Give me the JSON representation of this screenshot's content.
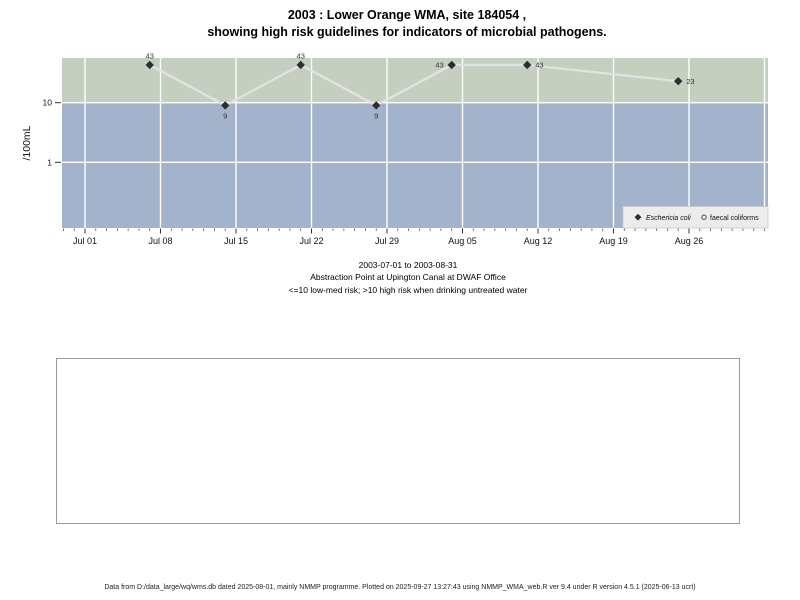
{
  "title": {
    "line1": "2003 : Lower Orange WMA, site 184054 ,",
    "line2": "showing high risk guidelines for indicators of microbial pathogens."
  },
  "chart_data": {
    "type": "line",
    "title": "2003 : Lower Orange WMA, site 184054 , showing high risk guidelines for indicators of microbial pathogens.",
    "ylabel": "/100mL",
    "xlabel": "",
    "y_scale": "log10",
    "y_tick_labels": [
      "10",
      "1"
    ],
    "y_tick_values": [
      10,
      1
    ],
    "x_tick_labels": [
      "Jul 01",
      "Jul 08",
      "Jul 15",
      "Jul 22",
      "Jul 29",
      "Aug 05",
      "Aug 12",
      "Aug 19",
      "Aug 26"
    ],
    "x_minor_tick_interval": "1 day",
    "x_range": [
      "2003-07-01",
      "2003-08-31"
    ],
    "grid": true,
    "legend_position": "bottom-right",
    "series": [
      {
        "name": "Eschericia coli",
        "marker": "filled-diamond",
        "line_color": "#e2e2e2",
        "marker_color": "#2e2e2e",
        "points": [
          {
            "day_from_jul01": 6,
            "value": 43,
            "label": "43",
            "label_side": "above"
          },
          {
            "day_from_jul01": 13,
            "value": 9,
            "label": "9",
            "label_side": "below"
          },
          {
            "day_from_jul01": 20,
            "value": 43,
            "label": "43",
            "label_side": "above"
          },
          {
            "day_from_jul01": 27,
            "value": 9,
            "label": "9",
            "label_side": "below"
          },
          {
            "day_from_jul01": 34,
            "value": 43,
            "label": "43",
            "label_side": "left"
          },
          {
            "day_from_jul01": 41,
            "value": 43,
            "label": "43",
            "label_side": "right"
          },
          {
            "day_from_jul01": 55,
            "value": 23,
            "label": "23",
            "label_side": "right"
          }
        ]
      },
      {
        "name": "faecal coliforms",
        "marker": "open-circle",
        "points": []
      }
    ],
    "bands": [
      {
        "name": "high-risk",
        "rule": ">10 high risk",
        "color": "#c5cfbf"
      },
      {
        "name": "low-med-risk",
        "rule": "<=10 low-med risk",
        "color": "#a3b3cb"
      }
    ],
    "legend": [
      {
        "label": "Eschericia coli",
        "marker": "filled-diamond",
        "italic": true
      },
      {
        "label": "faecal coliforms",
        "marker": "open-circle",
        "italic": false
      }
    ]
  },
  "captions": {
    "line1": "2003-07-01 to 2003-08-31",
    "line2": "Abstraction Point at Upington Canal at DWAF Office",
    "line3": "<=10 low-med risk; >10 high risk when drinking untreated water"
  },
  "footer": "Data from D:/data_large/wq/wms.db dated 2025-08-01, mainly NMMP programme. Plotted on 2025-09-27 13:27:43 using NMMP_WMA_web.R ver 9.4 under R version 4.5.1 (2025-06-13 ucrt)"
}
